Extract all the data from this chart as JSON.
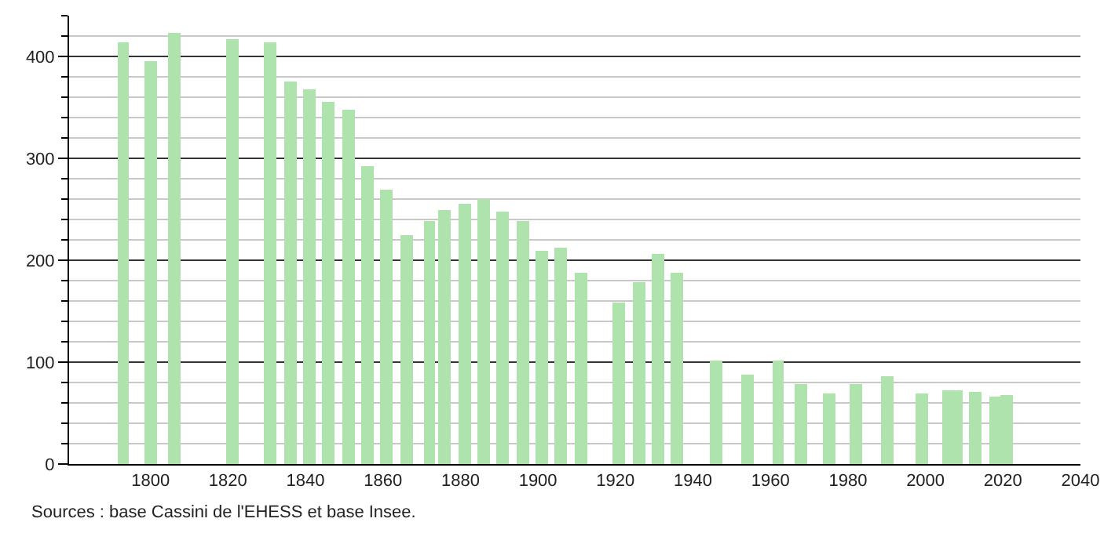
{
  "chart_data": {
    "type": "bar",
    "color": "#aee3ae",
    "x": [
      1793,
      1800,
      1806,
      1821,
      1831,
      1836,
      1841,
      1846,
      1851,
      1856,
      1861,
      1866,
      1872,
      1876,
      1881,
      1886,
      1891,
      1896,
      1901,
      1906,
      1911,
      1921,
      1926,
      1931,
      1936,
      1946,
      1954,
      1962,
      1968,
      1975,
      1982,
      1990,
      1999,
      2006,
      2008,
      2013,
      2018,
      2021
    ],
    "values": [
      414,
      396,
      423,
      417,
      414,
      375,
      367,
      355,
      348,
      293,
      269,
      225,
      238,
      249,
      256,
      260,
      247,
      238,
      209,
      212,
      187,
      159,
      179,
      206,
      187,
      102,
      88,
      101,
      79,
      70,
      79,
      86,
      70,
      73,
      73,
      71,
      66,
      68
    ],
    "xlim": [
      1779,
      2040
    ],
    "xticks": [
      1800,
      1820,
      1840,
      1860,
      1880,
      1900,
      1920,
      1940,
      1960,
      1980,
      2000,
      2020,
      2040
    ],
    "ylim": [
      0,
      440
    ],
    "yticks": [
      0,
      {
        "value": 20,
        "label": null
      },
      {
        "value": 40,
        "label": null
      },
      {
        "value": 60,
        "label": null
      },
      {
        "value": 80,
        "label": null
      },
      100,
      {
        "value": 120,
        "label": null
      },
      {
        "value": 140,
        "label": null
      },
      {
        "value": 160,
        "label": null
      },
      {
        "value": 180,
        "label": null
      },
      200,
      {
        "value": 220,
        "label": null
      },
      {
        "value": 240,
        "label": null
      },
      {
        "value": 260,
        "label": null
      },
      {
        "value": 280,
        "label": null
      },
      300,
      {
        "value": 320,
        "label": null
      },
      {
        "value": 340,
        "label": null
      },
      {
        "value": 360,
        "label": null
      },
      {
        "value": 380,
        "label": null
      },
      400,
      {
        "value": 420,
        "label": null
      },
      {
        "value": 440,
        "label": null
      }
    ],
    "grid": "y",
    "annotations": [
      "Sources : base Cassini de l'EHESS et base Insee."
    ]
  }
}
